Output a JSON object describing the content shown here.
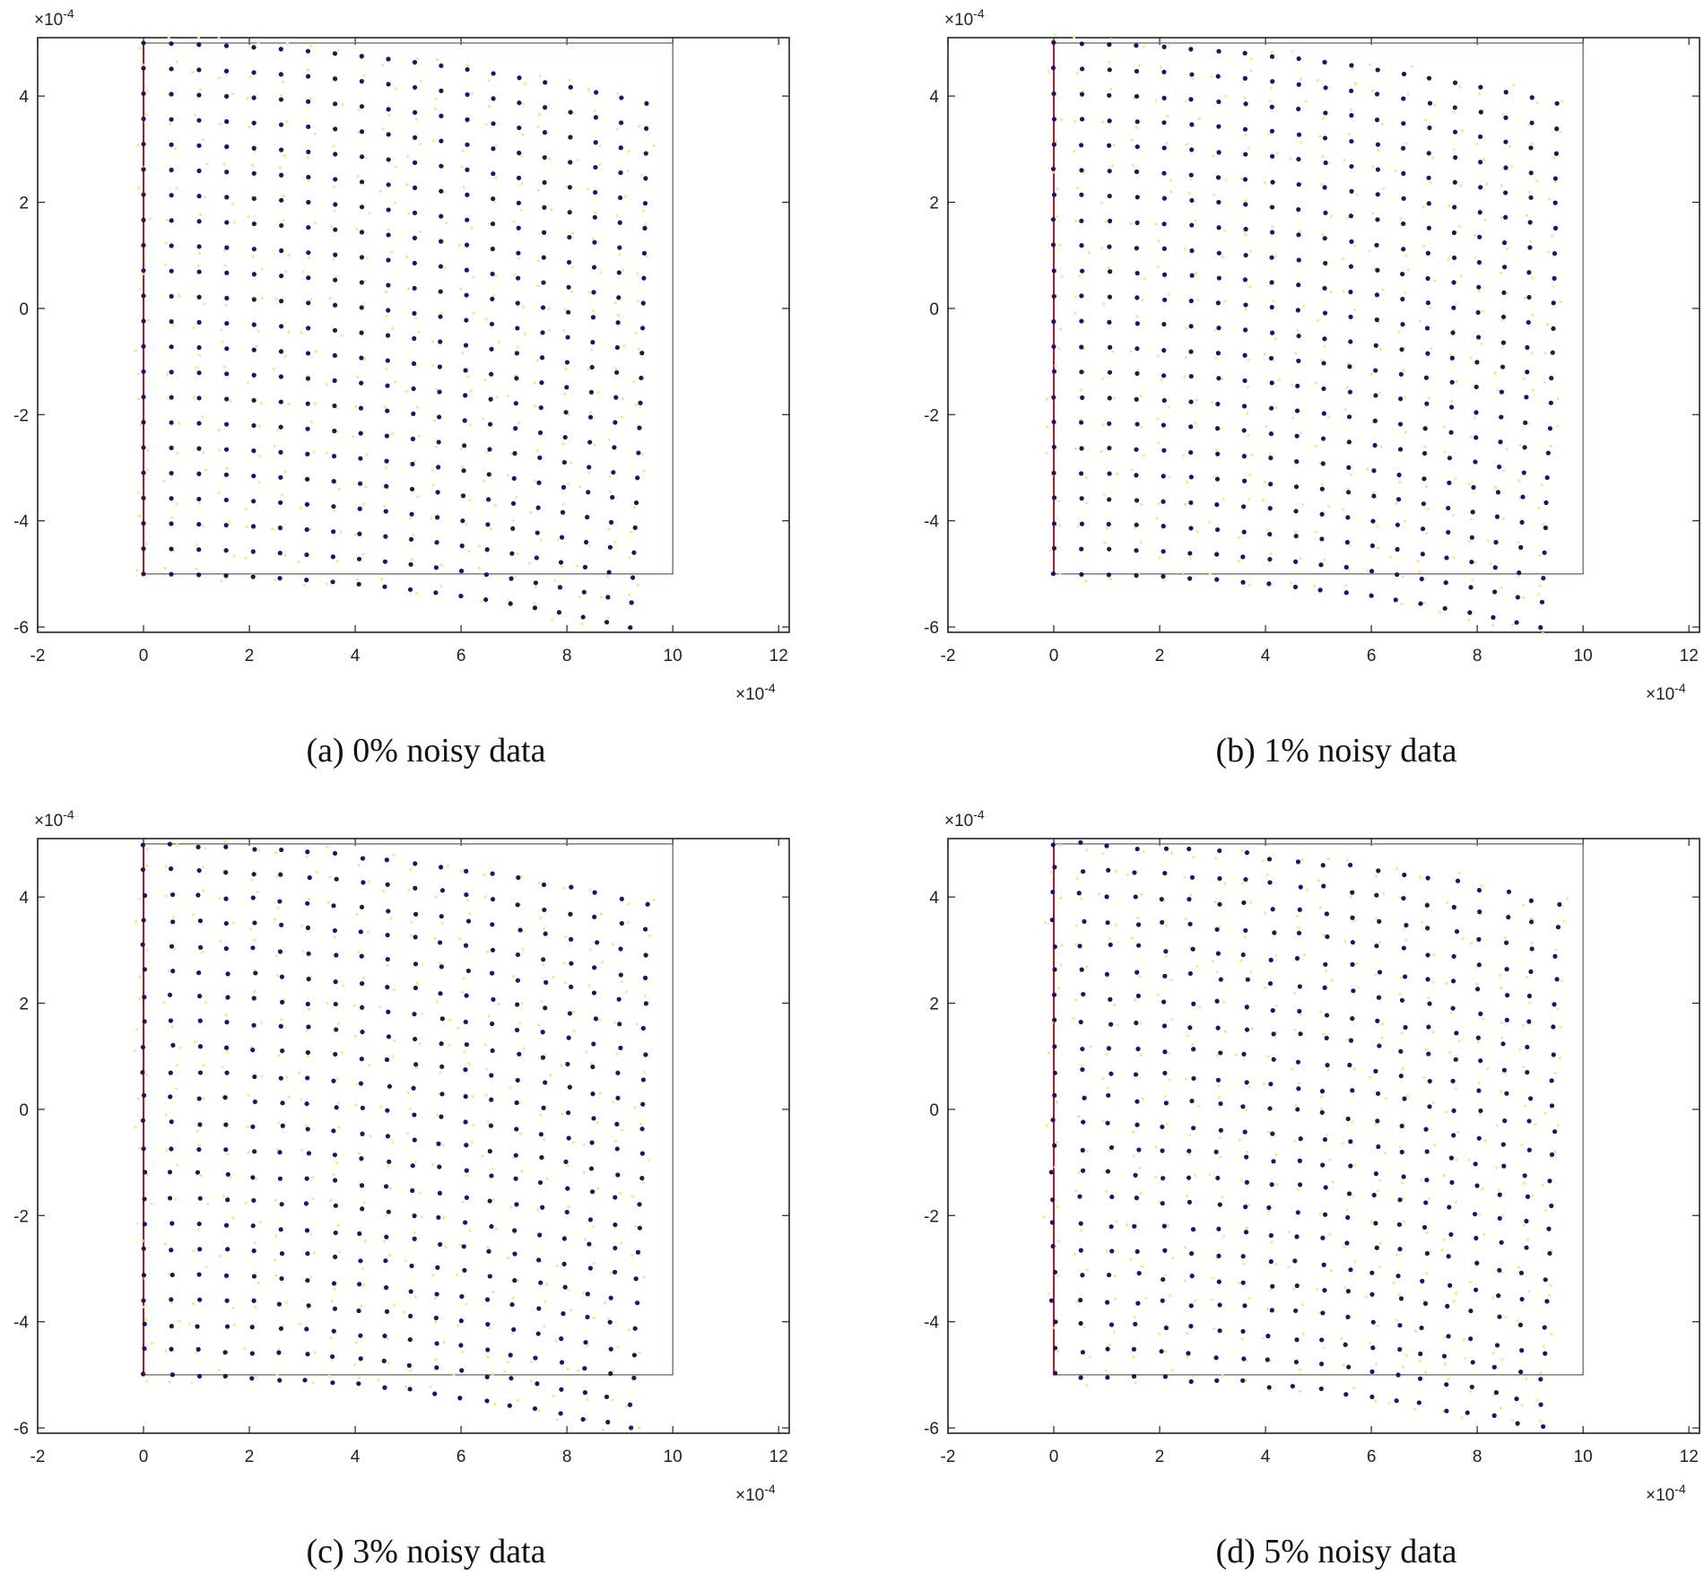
{
  "colors": {
    "background": "#ffffff",
    "axes": "#222222",
    "grid_points": "#1b1464",
    "boundary_outline": "#8a6a6a",
    "boundary_left_edge": "#a01c2c",
    "noise_dots": "#f2e890"
  },
  "chart_data": [
    {
      "type": "scatter",
      "caption": "(a) 0% noisy data",
      "noise_percent": 0,
      "x_tick_labels": [
        "-2",
        "0",
        "2",
        "4",
        "6",
        "8",
        "10",
        "12"
      ],
      "y_tick_labels": [
        "-6",
        "-4",
        "-2",
        "0",
        "2",
        "4"
      ],
      "x_exponent": "×10",
      "x_exponent_power": "-4",
      "y_exponent": "×10",
      "y_exponent_power": "-4",
      "xlim": [
        -2,
        12.2
      ],
      "ylim": [
        -6.1,
        5.1
      ],
      "reference_rectangle": {
        "x": [
          0,
          10
        ],
        "y": [
          -5,
          5
        ]
      },
      "grid": false,
      "series": [
        {
          "description": "deformed node grid (20 x 22 points)",
          "rows": 22,
          "cols": 20
        }
      ]
    },
    {
      "type": "scatter",
      "caption": "(b) 1% noisy data",
      "noise_percent": 1,
      "x_tick_labels": [
        "-2",
        "0",
        "2",
        "4",
        "6",
        "8",
        "10",
        "12"
      ],
      "y_tick_labels": [
        "-6",
        "-4",
        "-2",
        "0",
        "2",
        "4"
      ],
      "x_exponent": "×10",
      "x_exponent_power": "-4",
      "y_exponent": "×10",
      "y_exponent_power": "-4",
      "xlim": [
        -2,
        12.2
      ],
      "ylim": [
        -6.1,
        5.1
      ],
      "reference_rectangle": {
        "x": [
          0,
          10
        ],
        "y": [
          -5,
          5
        ]
      },
      "grid": false,
      "series": [
        {
          "description": "deformed node grid (20 x 22 points)",
          "rows": 22,
          "cols": 20
        }
      ]
    },
    {
      "type": "scatter",
      "caption": "(c) 3% noisy data",
      "noise_percent": 3,
      "x_tick_labels": [
        "-2",
        "0",
        "2",
        "4",
        "6",
        "8",
        "10",
        "12"
      ],
      "y_tick_labels": [
        "-6",
        "-4",
        "-2",
        "0",
        "2",
        "4"
      ],
      "x_exponent": "×10",
      "x_exponent_power": "-4",
      "y_exponent": "×10",
      "y_exponent_power": "-4",
      "xlim": [
        -2,
        12.2
      ],
      "ylim": [
        -6.1,
        5.1
      ],
      "reference_rectangle": {
        "x": [
          0,
          10
        ],
        "y": [
          -5,
          5
        ]
      },
      "grid": false,
      "series": [
        {
          "description": "deformed node grid (20 x 22 points)",
          "rows": 22,
          "cols": 20
        }
      ]
    },
    {
      "type": "scatter",
      "caption": "(d) 5% noisy data",
      "noise_percent": 5,
      "x_tick_labels": [
        "-2",
        "0",
        "2",
        "4",
        "6",
        "8",
        "10",
        "12"
      ],
      "y_tick_labels": [
        "-6",
        "-4",
        "-2",
        "0",
        "2",
        "4"
      ],
      "x_exponent": "×10",
      "x_exponent_power": "-4",
      "y_exponent": "×10",
      "y_exponent_power": "-4",
      "xlim": [
        -2,
        12.2
      ],
      "ylim": [
        -6.1,
        5.1
      ],
      "reference_rectangle": {
        "x": [
          0,
          10
        ],
        "y": [
          -5,
          5
        ]
      },
      "grid": false,
      "series": [
        {
          "description": "deformed node grid (20 x 22 points)",
          "rows": 22,
          "cols": 20
        }
      ]
    }
  ]
}
